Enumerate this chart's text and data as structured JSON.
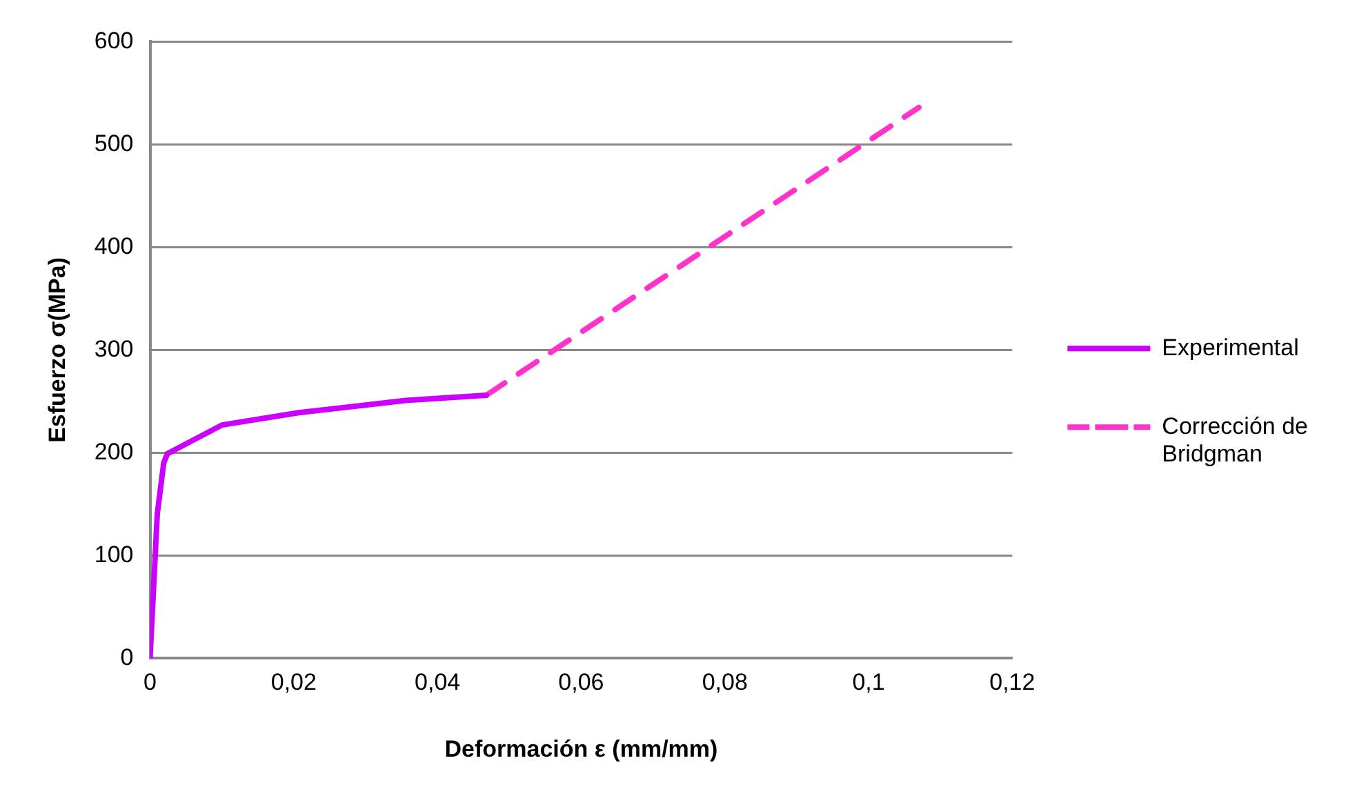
{
  "chart_data": {
    "type": "line",
    "xlabel": "Deformación ε (mm/mm)",
    "ylabel": "Esfuerzo σ(MPa)",
    "xlim": [
      0,
      0.12
    ],
    "xticks": [
      {
        "value": 0,
        "label": "0"
      },
      {
        "value": 0.02,
        "label": "0,02"
      },
      {
        "value": 0.04,
        "label": "0,04"
      },
      {
        "value": 0.06,
        "label": "0,06"
      },
      {
        "value": 0.08,
        "label": "0,08"
      },
      {
        "value": 0.1,
        "label": "0,1"
      },
      {
        "value": 0.12,
        "label": "0,12"
      }
    ],
    "ylim": [
      0,
      600
    ],
    "yticks": [
      0,
      100,
      200,
      300,
      400,
      500,
      600
    ],
    "grid": "y",
    "legend": "right",
    "marker": "none",
    "series": [
      {
        "name": "Experimental",
        "color": "#cc00ff",
        "line_style": "solid",
        "x": [
          0,
          0.001,
          0.0019,
          0.0024,
          0.01,
          0.0207,
          0.0356,
          0.0468
        ],
        "values": [
          0,
          140,
          190,
          199,
          227,
          239,
          251,
          256
        ]
      },
      {
        "name": "Corrección de Bridgman",
        "color": "#ff33cc",
        "line_style": "dashed",
        "x": [
          0.0468,
          0.107
        ],
        "values": [
          256,
          536
        ]
      }
    ]
  }
}
